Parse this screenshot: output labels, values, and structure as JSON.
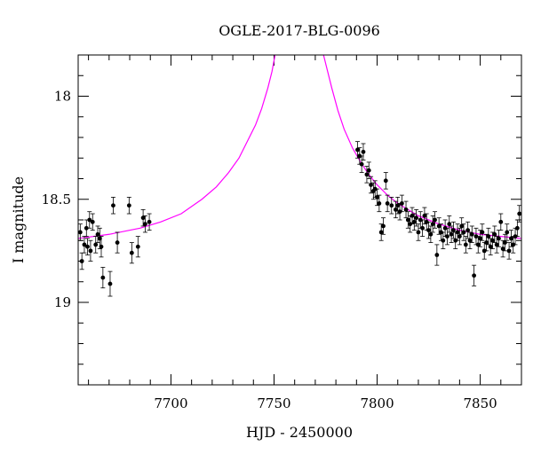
{
  "chart_data": {
    "type": "scatter",
    "title": "OGLE-2017-BLG-0096",
    "xlabel": "HJD - 2450000",
    "ylabel": "I magnitude",
    "xlim": [
      7655,
      7870
    ],
    "ylim": [
      19.4,
      17.8
    ],
    "y_inverted": true,
    "x_ticks": [
      7700,
      7750,
      7800,
      7850
    ],
    "x_tick_labels": [
      "7700",
      "7750",
      "7800",
      "7850"
    ],
    "y_ticks": [
      18,
      18.5,
      19
    ],
    "y_tick_labels": [
      "18",
      "18.5",
      "19"
    ],
    "grid": false,
    "series": [
      {
        "kind": "points_with_errorbars",
        "color": "#000000",
        "points": [
          [
            7656.0,
            18.66,
            0.04
          ],
          [
            7656.8,
            18.8,
            0.04
          ],
          [
            7658.0,
            18.72,
            0.04
          ],
          [
            7659.0,
            18.64,
            0.04
          ],
          [
            7659.5,
            18.73,
            0.04
          ],
          [
            7660.5,
            18.6,
            0.04
          ],
          [
            7661.0,
            18.75,
            0.05
          ],
          [
            7662.0,
            18.61,
            0.04
          ],
          [
            7663.5,
            18.72,
            0.04
          ],
          [
            7664.5,
            18.67,
            0.04
          ],
          [
            7665.5,
            18.69,
            0.05
          ],
          [
            7666.2,
            18.73,
            0.05
          ],
          [
            7667.0,
            18.88,
            0.05
          ],
          [
            7670.5,
            18.91,
            0.06
          ],
          [
            7672.0,
            18.53,
            0.04
          ],
          [
            7674.0,
            18.71,
            0.05
          ],
          [
            7679.7,
            18.53,
            0.04
          ],
          [
            7681.0,
            18.76,
            0.05
          ],
          [
            7684.0,
            18.73,
            0.05
          ],
          [
            7686.5,
            18.59,
            0.04
          ],
          [
            7687.5,
            18.62,
            0.04
          ],
          [
            7689.5,
            18.61,
            0.04
          ],
          [
            7790.5,
            18.26,
            0.04
          ],
          [
            7791.5,
            18.29,
            0.04
          ],
          [
            7792.5,
            18.33,
            0.04
          ],
          [
            7793.3,
            18.27,
            0.04
          ],
          [
            7795.0,
            18.38,
            0.04
          ],
          [
            7796.0,
            18.36,
            0.04
          ],
          [
            7797.0,
            18.43,
            0.04
          ],
          [
            7798.2,
            18.46,
            0.04
          ],
          [
            7799.0,
            18.45,
            0.04
          ],
          [
            7800.0,
            18.49,
            0.04
          ],
          [
            7801.0,
            18.52,
            0.04
          ],
          [
            7802.0,
            18.66,
            0.04
          ],
          [
            7803.0,
            18.63,
            0.04
          ],
          [
            7804.2,
            18.41,
            0.04
          ],
          [
            7805.0,
            18.52,
            0.04
          ],
          [
            7807.0,
            18.53,
            0.04
          ],
          [
            7809.0,
            18.55,
            0.04
          ],
          [
            7810.0,
            18.53,
            0.04
          ],
          [
            7811.0,
            18.56,
            0.04
          ],
          [
            7812.0,
            18.52,
            0.04
          ],
          [
            7814.0,
            18.55,
            0.04
          ],
          [
            7815.0,
            18.6,
            0.04
          ],
          [
            7816.0,
            18.62,
            0.04
          ],
          [
            7817.0,
            18.58,
            0.04
          ],
          [
            7818.0,
            18.61,
            0.04
          ],
          [
            7819.0,
            18.59,
            0.04
          ],
          [
            7820.0,
            18.66,
            0.04
          ],
          [
            7821.0,
            18.6,
            0.04
          ],
          [
            7822.0,
            18.64,
            0.04
          ],
          [
            7823.0,
            18.58,
            0.04
          ],
          [
            7824.0,
            18.61,
            0.04
          ],
          [
            7825.0,
            18.65,
            0.04
          ],
          [
            7826.0,
            18.67,
            0.04
          ],
          [
            7827.0,
            18.62,
            0.04
          ],
          [
            7828.0,
            18.6,
            0.04
          ],
          [
            7829.0,
            18.77,
            0.05
          ],
          [
            7830.0,
            18.63,
            0.04
          ],
          [
            7831.0,
            18.66,
            0.04
          ],
          [
            7832.0,
            18.7,
            0.04
          ],
          [
            7833.0,
            18.64,
            0.04
          ],
          [
            7834.0,
            18.68,
            0.04
          ],
          [
            7835.0,
            18.62,
            0.04
          ],
          [
            7836.0,
            18.67,
            0.04
          ],
          [
            7837.0,
            18.65,
            0.04
          ],
          [
            7838.0,
            18.7,
            0.04
          ],
          [
            7839.0,
            18.66,
            0.04
          ],
          [
            7840.0,
            18.68,
            0.04
          ],
          [
            7841.0,
            18.63,
            0.04
          ],
          [
            7842.0,
            18.66,
            0.04
          ],
          [
            7843.0,
            18.72,
            0.04
          ],
          [
            7844.0,
            18.65,
            0.04
          ],
          [
            7845.0,
            18.7,
            0.04
          ],
          [
            7846.0,
            18.67,
            0.04
          ],
          [
            7847.0,
            18.87,
            0.05
          ],
          [
            7848.0,
            18.68,
            0.04
          ],
          [
            7849.0,
            18.72,
            0.04
          ],
          [
            7850.0,
            18.69,
            0.04
          ],
          [
            7851.0,
            18.66,
            0.04
          ],
          [
            7852.0,
            18.75,
            0.04
          ],
          [
            7853.0,
            18.71,
            0.04
          ],
          [
            7854.0,
            18.68,
            0.04
          ],
          [
            7855.0,
            18.73,
            0.04
          ],
          [
            7856.0,
            18.7,
            0.04
          ],
          [
            7857.0,
            18.67,
            0.04
          ],
          [
            7858.0,
            18.72,
            0.04
          ],
          [
            7859.0,
            18.69,
            0.04
          ],
          [
            7860.0,
            18.61,
            0.04
          ],
          [
            7861.0,
            18.74,
            0.04
          ],
          [
            7862.0,
            18.71,
            0.04
          ],
          [
            7863.0,
            18.66,
            0.04
          ],
          [
            7864.0,
            18.75,
            0.04
          ],
          [
            7865.0,
            18.69,
            0.04
          ],
          [
            7866.0,
            18.72,
            0.04
          ],
          [
            7867.0,
            18.68,
            0.04
          ],
          [
            7868.0,
            18.64,
            0.04
          ],
          [
            7869.0,
            18.57,
            0.04
          ]
        ]
      },
      {
        "kind": "model_curve",
        "color": "#ff00ff",
        "points": [
          [
            7655,
            18.69
          ],
          [
            7670,
            18.67
          ],
          [
            7685,
            18.64
          ],
          [
            7695,
            18.61
          ],
          [
            7705,
            18.57
          ],
          [
            7715,
            18.5
          ],
          [
            7722,
            18.44
          ],
          [
            7728,
            18.37
          ],
          [
            7733,
            18.3
          ],
          [
            7737,
            18.22
          ],
          [
            7741,
            18.14
          ],
          [
            7744,
            18.06
          ],
          [
            7747,
            17.96
          ],
          [
            7749,
            17.88
          ],
          [
            7750.5,
            17.8
          ],
          [
            7774.0,
            17.8
          ],
          [
            7776,
            17.88
          ],
          [
            7778,
            17.96
          ],
          [
            7781,
            18.07
          ],
          [
            7784,
            18.16
          ],
          [
            7788,
            18.25
          ],
          [
            7792,
            18.32
          ],
          [
            7796,
            18.38
          ],
          [
            7800,
            18.43
          ],
          [
            7805,
            18.48
          ],
          [
            7810,
            18.52
          ],
          [
            7815,
            18.55
          ],
          [
            7820,
            18.58
          ],
          [
            7830,
            18.62
          ],
          [
            7840,
            18.65
          ],
          [
            7850,
            18.67
          ],
          [
            7860,
            18.68
          ],
          [
            7870,
            18.69
          ]
        ]
      }
    ]
  }
}
